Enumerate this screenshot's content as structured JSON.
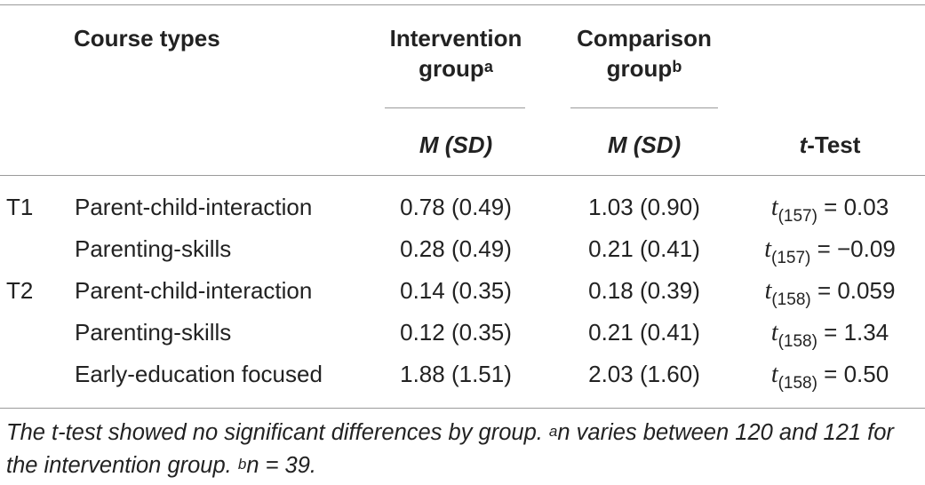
{
  "header": {
    "course_types": "Course types",
    "intervention_line1": "Intervention",
    "intervention_line2": "group",
    "intervention_sup": "a",
    "comparison_line1": "Comparison",
    "comparison_line2": "group",
    "comparison_sup": "b",
    "msd_intervention": "M (SD)",
    "msd_comparison": "M (SD)",
    "ttest_t": "t",
    "ttest_rest": "-Test"
  },
  "rows": [
    {
      "time": "T1",
      "course": "Parent-child-interaction",
      "intervention": "0.78 (0.49)",
      "comparison": "1.03 (0.90)",
      "t_df": "(157)",
      "t_value": " = 0.03"
    },
    {
      "time": "",
      "course": "Parenting-skills",
      "intervention": "0.28 (0.49)",
      "comparison": "0.21 (0.41)",
      "t_df": "(157)",
      "t_value": " = −0.09"
    },
    {
      "time": "T2",
      "course": "Parent-child-interaction",
      "intervention": "0.14 (0.35)",
      "comparison": "0.18 (0.39)",
      "t_df": "(158)",
      "t_value": " = 0.059"
    },
    {
      "time": "",
      "course": "Parenting-skills",
      "intervention": "0.12 (0.35)",
      "comparison": "0.21 (0.41)",
      "t_df": "(158)",
      "t_value": " = 1.34"
    },
    {
      "time": "",
      "course": "Early-education focused",
      "intervention": "1.88 (1.51)",
      "comparison": "2.03 (1.60)",
      "t_df": "(158)",
      "t_value": " = 0.50"
    }
  ],
  "note": {
    "text1": "The t-test showed no significant differences by group. ",
    "sup_a": "a",
    "text2": "n varies between 120 and 121 for the intervention group. ",
    "sup_b": "b",
    "text3": "n = 39."
  }
}
